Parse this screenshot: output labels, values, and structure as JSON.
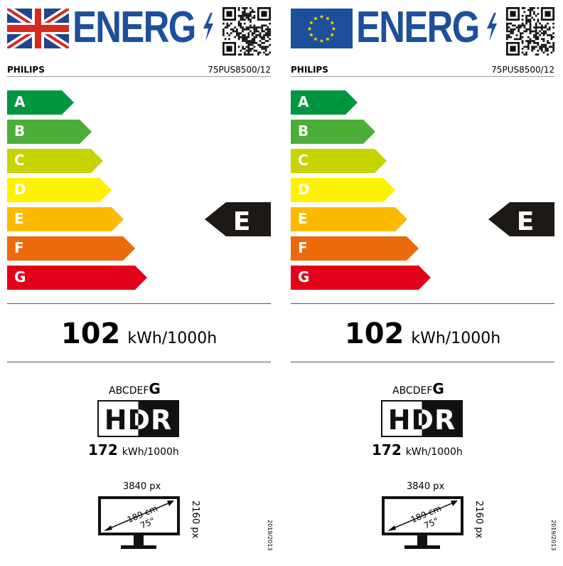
{
  "labels": [
    {
      "flag": "uk-flag",
      "energy_word": "ENERG",
      "brand": "PHILIPS",
      "model": "75PUS8500/12"
    },
    {
      "flag": "eu-flag",
      "energy_word": "ENERG",
      "brand": "PHILIPS",
      "model": "75PUS8500/12"
    }
  ],
  "classes": [
    {
      "letter": "A",
      "color": "#00963f"
    },
    {
      "letter": "B",
      "color": "#4bae38"
    },
    {
      "letter": "C",
      "color": "#c8d400"
    },
    {
      "letter": "D",
      "color": "#fff200"
    },
    {
      "letter": "E",
      "color": "#fbba00"
    },
    {
      "letter": "F",
      "color": "#eb6a0a"
    },
    {
      "letter": "G",
      "color": "#e3001b"
    }
  ],
  "rating": "E",
  "sdr": {
    "value": "102",
    "unit": "kWh/1000h"
  },
  "hdr": {
    "scale": "ABCDEF",
    "scale_class": "G",
    "logo": "HDR",
    "value": "172",
    "unit": "kWh/1000h"
  },
  "screen": {
    "h_res": "3840 px",
    "v_res": "2160 px",
    "diag_cm": "189 cm",
    "diag_in": "75\""
  },
  "regulation": "2019/2013"
}
